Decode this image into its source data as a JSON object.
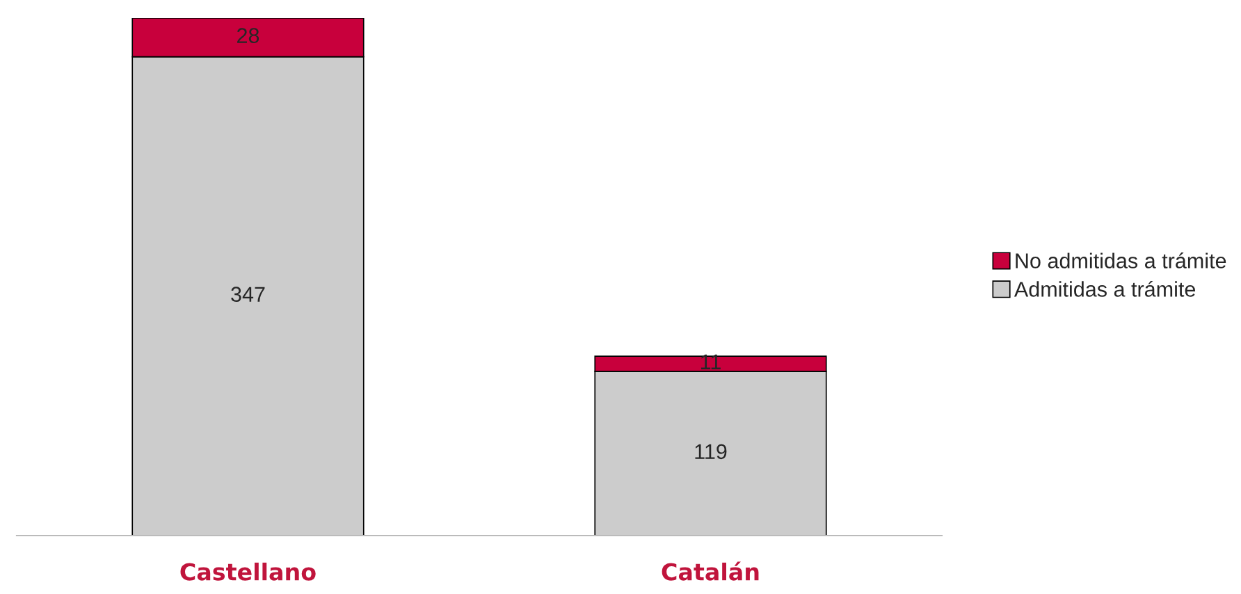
{
  "chart_data": {
    "type": "bar",
    "stacked": true,
    "data_labels": true,
    "legend": "right",
    "grid": false,
    "categories": [
      "Castellano",
      "Catalán"
    ],
    "series": [
      {
        "name": "Admitidas a trámite",
        "color": "#cccccc",
        "values": [
          347,
          119
        ]
      },
      {
        "name": "No admitidas a trámite",
        "color": "#c8003c",
        "values": [
          28,
          11
        ]
      }
    ]
  }
}
